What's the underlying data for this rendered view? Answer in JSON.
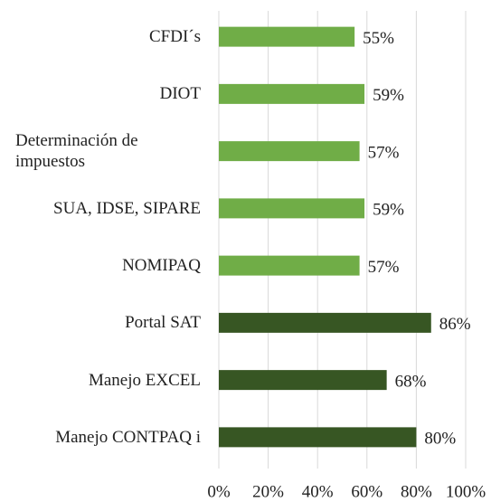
{
  "chart_data": {
    "type": "bar",
    "orientation": "horizontal",
    "categories": [
      "CFDI´s",
      "DIOT",
      "Determinación de impuestos",
      "SUA, IDSE, SIPARE",
      "NOMIPAQ",
      "Portal SAT",
      "Manejo EXCEL",
      "Manejo CONTPAQ i"
    ],
    "values": [
      55,
      59,
      57,
      59,
      57,
      86,
      68,
      80
    ],
    "value_labels": [
      "55%",
      "59%",
      "57%",
      "59%",
      "57%",
      "86%",
      "68%",
      "80%"
    ],
    "colors": [
      "#70ad47",
      "#70ad47",
      "#70ad47",
      "#70ad47",
      "#70ad47",
      "#375623",
      "#375623",
      "#375623"
    ],
    "xlim": [
      0,
      100
    ],
    "xticks": [
      {
        "value": 0,
        "label": "0%"
      },
      {
        "value": 20,
        "label": "20%"
      },
      {
        "value": 40,
        "label": "40%"
      },
      {
        "value": 60,
        "label": "60%"
      },
      {
        "value": 80,
        "label": "80%"
      },
      {
        "value": 100,
        "label": "100%"
      }
    ],
    "grid": true
  }
}
